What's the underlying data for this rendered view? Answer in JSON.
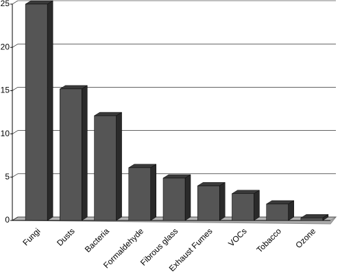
{
  "chart_data": {
    "type": "bar",
    "categories": [
      "Fungi",
      "Dusts",
      "Bacteria",
      "Formaldehyde",
      "Fibrous glass",
      "Exhaust Fumes",
      "VOCs",
      "Tobacco",
      "Ozone"
    ],
    "values": [
      25,
      15.2,
      12.1,
      6.1,
      4.9,
      4.0,
      3.1,
      1.9,
      0.3
    ],
    "color": "#555555",
    "ylim": [
      0,
      25
    ],
    "yticks": [
      0,
      5,
      10,
      15,
      20,
      25
    ],
    "grid": true
  }
}
